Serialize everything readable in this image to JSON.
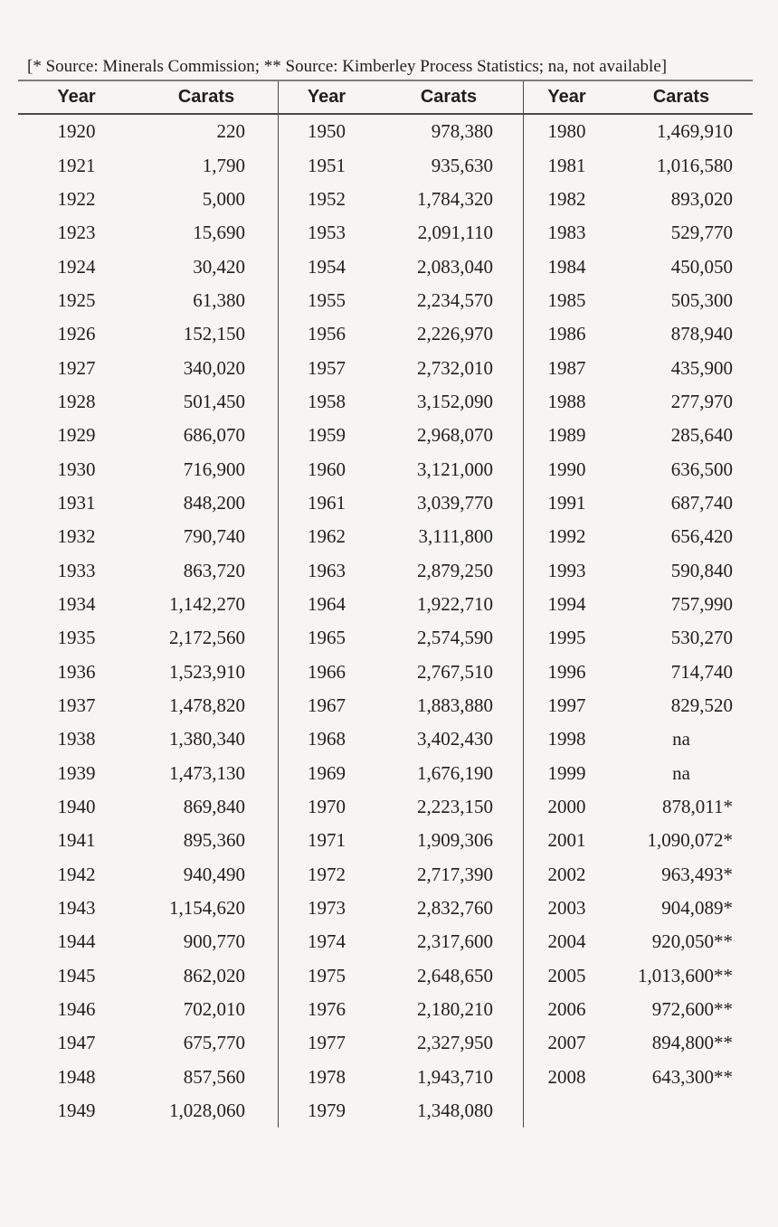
{
  "source_note": "[* Source: Minerals Commission; ** Source: Kimberley Process Statistics; na, not available]",
  "colors": {
    "background": "#f6f5f3",
    "text": "#1f1f1f",
    "border_top_color": "#7d7d7d",
    "border_header": "#4a4a4a",
    "border_divider": "#4a4a4a"
  },
  "table": {
    "header": {
      "year_label": "Year",
      "carats_label": "Carats"
    },
    "groups": [
      {
        "rows": [
          {
            "year": "1920",
            "carats": "220"
          },
          {
            "year": "1921",
            "carats": "1,790"
          },
          {
            "year": "1922",
            "carats": "5,000"
          },
          {
            "year": "1923",
            "carats": "15,690"
          },
          {
            "year": "1924",
            "carats": "30,420"
          },
          {
            "year": "1925",
            "carats": "61,380"
          },
          {
            "year": "1926",
            "carats": "152,150"
          },
          {
            "year": "1927",
            "carats": "340,020"
          },
          {
            "year": "1928",
            "carats": "501,450"
          },
          {
            "year": "1929",
            "carats": "686,070"
          },
          {
            "year": "1930",
            "carats": "716,900"
          },
          {
            "year": "1931",
            "carats": "848,200"
          },
          {
            "year": "1932",
            "carats": "790,740"
          },
          {
            "year": "1933",
            "carats": "863,720"
          },
          {
            "year": "1934",
            "carats": "1,142,270"
          },
          {
            "year": "1935",
            "carats": "2,172,560"
          },
          {
            "year": "1936",
            "carats": "1,523,910"
          },
          {
            "year": "1937",
            "carats": "1,478,820"
          },
          {
            "year": "1938",
            "carats": "1,380,340"
          },
          {
            "year": "1939",
            "carats": "1,473,130"
          },
          {
            "year": "1940",
            "carats": "869,840"
          },
          {
            "year": "1941",
            "carats": "895,360"
          },
          {
            "year": "1942",
            "carats": "940,490"
          },
          {
            "year": "1943",
            "carats": "1,154,620"
          },
          {
            "year": "1944",
            "carats": "900,770"
          },
          {
            "year": "1945",
            "carats": "862,020"
          },
          {
            "year": "1946",
            "carats": "702,010"
          },
          {
            "year": "1947",
            "carats": "675,770"
          },
          {
            "year": "1948",
            "carats": "857,560"
          },
          {
            "year": "1949",
            "carats": "1,028,060"
          }
        ]
      },
      {
        "rows": [
          {
            "year": "1950",
            "carats": "978,380"
          },
          {
            "year": "1951",
            "carats": "935,630"
          },
          {
            "year": "1952",
            "carats": "1,784,320"
          },
          {
            "year": "1953",
            "carats": "2,091,110"
          },
          {
            "year": "1954",
            "carats": "2,083,040"
          },
          {
            "year": "1955",
            "carats": "2,234,570"
          },
          {
            "year": "1956",
            "carats": "2,226,970"
          },
          {
            "year": "1957",
            "carats": "2,732,010"
          },
          {
            "year": "1958",
            "carats": "3,152,090"
          },
          {
            "year": "1959",
            "carats": "2,968,070"
          },
          {
            "year": "1960",
            "carats": "3,121,000"
          },
          {
            "year": "1961",
            "carats": "3,039,770"
          },
          {
            "year": "1962",
            "carats": "3,111,800"
          },
          {
            "year": "1963",
            "carats": "2,879,250"
          },
          {
            "year": "1964",
            "carats": "1,922,710"
          },
          {
            "year": "1965",
            "carats": "2,574,590"
          },
          {
            "year": "1966",
            "carats": "2,767,510"
          },
          {
            "year": "1967",
            "carats": "1,883,880"
          },
          {
            "year": "1968",
            "carats": "3,402,430"
          },
          {
            "year": "1969",
            "carats": "1,676,190"
          },
          {
            "year": "1970",
            "carats": "2,223,150"
          },
          {
            "year": "1971",
            "carats": "1,909,306"
          },
          {
            "year": "1972",
            "carats": "2,717,390"
          },
          {
            "year": "1973",
            "carats": "2,832,760"
          },
          {
            "year": "1974",
            "carats": "2,317,600"
          },
          {
            "year": "1975",
            "carats": "2,648,650"
          },
          {
            "year": "1976",
            "carats": "2,180,210"
          },
          {
            "year": "1977",
            "carats": "2,327,950"
          },
          {
            "year": "1978",
            "carats": "1,943,710"
          },
          {
            "year": "1979",
            "carats": "1,348,080"
          }
        ]
      },
      {
        "rows": [
          {
            "year": "1980",
            "carats": "1,469,910"
          },
          {
            "year": "1981",
            "carats": "1,016,580"
          },
          {
            "year": "1982",
            "carats": "893,020"
          },
          {
            "year": "1983",
            "carats": "529,770"
          },
          {
            "year": "1984",
            "carats": "450,050"
          },
          {
            "year": "1985",
            "carats": "505,300"
          },
          {
            "year": "1986",
            "carats": "878,940"
          },
          {
            "year": "1987",
            "carats": "435,900"
          },
          {
            "year": "1988",
            "carats": "277,970"
          },
          {
            "year": "1989",
            "carats": "285,640"
          },
          {
            "year": "1990",
            "carats": "636,500"
          },
          {
            "year": "1991",
            "carats": "687,740"
          },
          {
            "year": "1992",
            "carats": "656,420"
          },
          {
            "year": "1993",
            "carats": "590,840"
          },
          {
            "year": "1994",
            "carats": "757,990"
          },
          {
            "year": "1995",
            "carats": "530,270"
          },
          {
            "year": "1996",
            "carats": "714,740"
          },
          {
            "year": "1997",
            "carats": "829,520"
          },
          {
            "year": "1998",
            "carats": "na"
          },
          {
            "year": "1999",
            "carats": "na"
          },
          {
            "year": "2000",
            "carats": "878,011*"
          },
          {
            "year": "2001",
            "carats": "1,090,072*"
          },
          {
            "year": "2002",
            "carats": "963,493*"
          },
          {
            "year": "2003",
            "carats": "904,089*"
          },
          {
            "year": "2004",
            "carats": "920,050**"
          },
          {
            "year": "2005",
            "carats": "1,013,600**"
          },
          {
            "year": "2006",
            "carats": "972,600**"
          },
          {
            "year": "2007",
            "carats": "894,800**"
          },
          {
            "year": "2008",
            "carats": "643,300**"
          }
        ]
      }
    ]
  }
}
